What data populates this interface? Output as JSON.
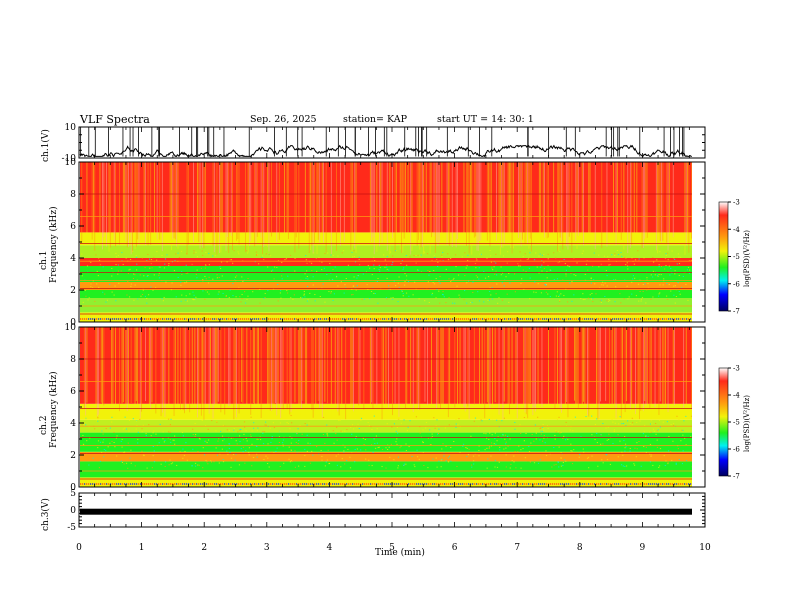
{
  "header": {
    "title": "VLF Spectra",
    "date": "Sep. 26, 2025",
    "station": "station= KAP",
    "start": "start  UT  =   14: 30: 1"
  },
  "chart_data": [
    {
      "type": "line",
      "name": "ch1-voltage",
      "ylabel": "ch.1(V)",
      "ylim": [
        -10,
        10
      ],
      "yticks": [
        "10",
        "-10"
      ],
      "xlim": [
        0,
        10
      ],
      "description_values": {
        "typical_min": -9,
        "typical_max": -2
      }
    },
    {
      "type": "heatmap",
      "name": "ch1-spectrogram",
      "ylabel_line1": "ch.1",
      "ylabel_line2": "Frequency (kHz)",
      "ylim": [
        0,
        10
      ],
      "yticks": [
        "0",
        "2",
        "4",
        "6",
        "8",
        "10"
      ],
      "xlim": [
        0,
        9.83
      ],
      "colorbar": {
        "label": "log(PSD)(V²/Hz)",
        "range": [
          -7,
          -3
        ],
        "ticks": [
          "-3",
          "-4",
          "-5",
          "-6",
          "-7"
        ]
      }
    },
    {
      "type": "heatmap",
      "name": "ch2-spectrogram",
      "ylabel_line1": "ch.2",
      "ylabel_line2": "Frequency (kHz)",
      "ylim": [
        0,
        10
      ],
      "yticks": [
        "0",
        "2",
        "4",
        "6",
        "8",
        "10"
      ],
      "xlim": [
        0,
        9.83
      ],
      "colorbar": {
        "label": "log(PSD)(V²/Hz)",
        "range": [
          -7,
          -3
        ],
        "ticks": [
          "-3",
          "-4",
          "-5",
          "-6",
          "-7"
        ]
      }
    },
    {
      "type": "line",
      "name": "ch3-voltage",
      "ylabel": "ch.3(V)",
      "ylim": [
        -5,
        5
      ],
      "yticks": [
        "5",
        "0",
        "-5"
      ],
      "values_constant": -0.5,
      "xlim": [
        0,
        9.83
      ]
    }
  ],
  "xaxis": {
    "label": "Time (min)",
    "range": [
      0,
      10
    ],
    "ticks": [
      "0",
      "1",
      "2",
      "3",
      "4",
      "5",
      "6",
      "7",
      "8",
      "9",
      "10"
    ]
  },
  "colors": {
    "red": "#ff2a1a",
    "orange": "#ff9a10",
    "yellow": "#f2f20a",
    "green": "#20f020",
    "cyan": "#00f0f0",
    "blue": "#0000ff",
    "navy": "#000060"
  }
}
